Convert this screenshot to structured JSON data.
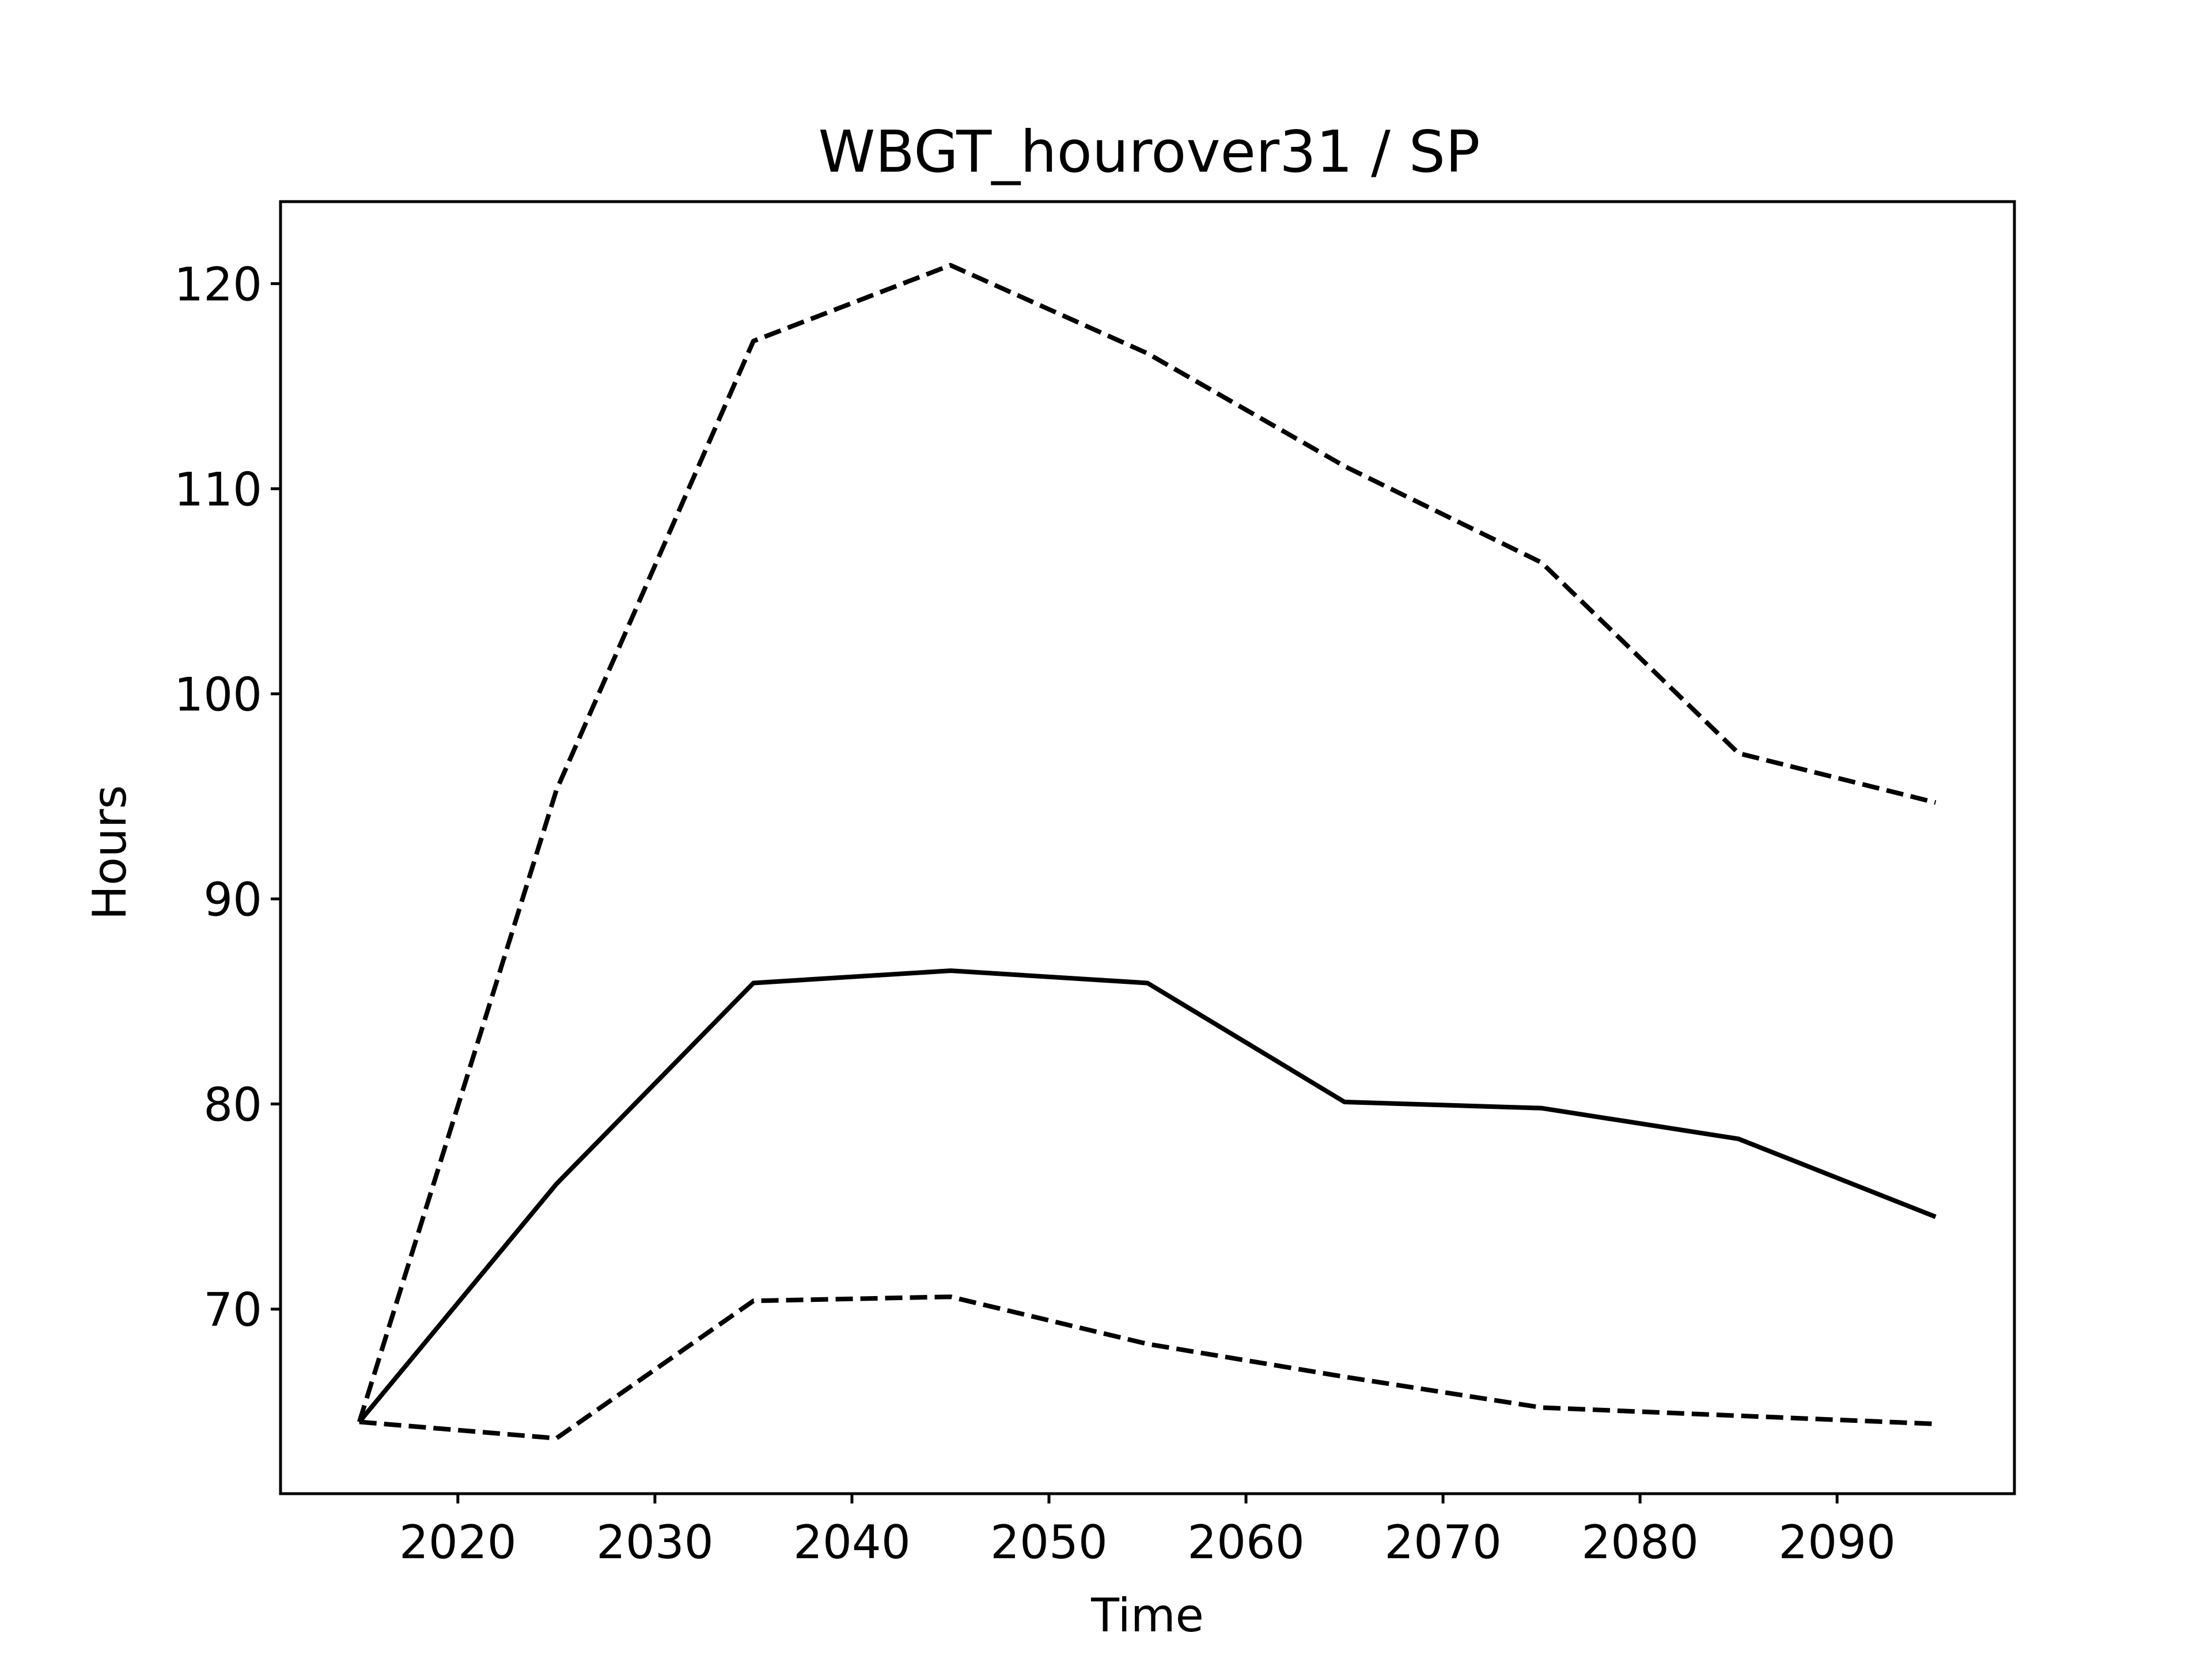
{
  "chart_data": {
    "type": "line",
    "title": "WBGT_hourover31 / SP",
    "xlabel": "Time",
    "ylabel": "Hours",
    "xlim": [
      2011,
      2099
    ],
    "ylim": [
      61,
      124
    ],
    "xticks": [
      2020,
      2030,
      2040,
      2050,
      2060,
      2070,
      2080,
      2090
    ],
    "yticks": [
      70,
      80,
      90,
      100,
      110,
      120
    ],
    "grid": false,
    "x": [
      2015,
      2025,
      2035,
      2045,
      2055,
      2065,
      2075,
      2085,
      2095
    ],
    "series": [
      {
        "style": "dashed",
        "values": [
          64.5,
          95.3,
          117.2,
          120.9,
          116.6,
          111.1,
          106.4,
          97.1,
          94.7
        ]
      },
      {
        "style": "solid",
        "values": [
          64.5,
          76.1,
          85.9,
          86.5,
          85.9,
          80.1,
          79.8,
          78.3,
          74.5
        ]
      },
      {
        "style": "dashed",
        "values": [
          64.5,
          63.7,
          70.4,
          70.6,
          68.3,
          66.7,
          65.2,
          64.8,
          64.4
        ]
      }
    ]
  }
}
